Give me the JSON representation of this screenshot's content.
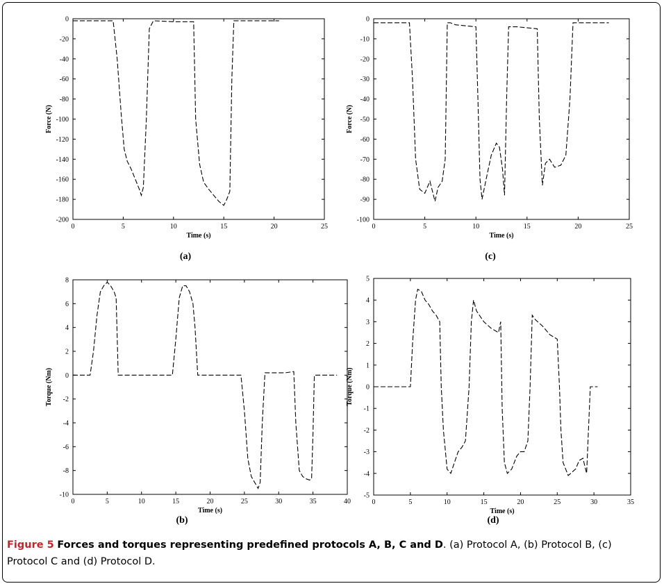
{
  "caption": {
    "figure_label": "Figure 5",
    "title": "Forces and torques representing predefined protocols A, B, C and D",
    "text": ". (a) Protocol A, (b) Protocol B, (c) Protocol C and (d) Protocol D."
  },
  "chart_data": [
    {
      "id": "a",
      "type": "line",
      "panel_label": "(a)",
      "xlabel": "Time (s)",
      "ylabel": "Force (N)",
      "xlim": [
        0,
        25
      ],
      "ylim": [
        -200,
        0
      ],
      "xticks": [
        0,
        5,
        10,
        15,
        20,
        25
      ],
      "yticks": [
        0,
        -20,
        -40,
        -60,
        -80,
        -100,
        -120,
        -140,
        -160,
        -180,
        -200
      ],
      "line_style": "dashed",
      "line_color": "#000000",
      "series": [
        {
          "x": [
            0,
            4,
            4.4,
            4.8,
            5.1,
            5.4,
            5.8,
            6.2,
            6.6,
            6.8,
            7.0,
            7.3,
            7.6,
            8.0,
            10,
            12.0,
            12.2,
            12.6,
            13.0,
            13.5,
            14.0,
            14.5,
            15.0,
            15.3,
            15.6,
            15.8,
            16.0,
            17,
            20.5
          ],
          "y": [
            -2,
            -2,
            -40,
            -95,
            -130,
            -142,
            -150,
            -160,
            -170,
            -176,
            -168,
            -100,
            -10,
            -2,
            -3,
            -3,
            -100,
            -145,
            -163,
            -170,
            -176,
            -182,
            -186,
            -180,
            -172,
            -60,
            -2,
            -2,
            -2
          ]
        }
      ]
    },
    {
      "id": "c",
      "type": "line",
      "panel_label": "(c)",
      "xlabel": "Time (s)",
      "ylabel": "Force (N)",
      "xlim": [
        0,
        25
      ],
      "ylim": [
        -100,
        0
      ],
      "xticks": [
        0,
        5,
        10,
        15,
        20,
        25
      ],
      "yticks": [
        0,
        -10,
        -20,
        -30,
        -40,
        -50,
        -60,
        -70,
        -80,
        -90,
        -100
      ],
      "line_style": "dashed",
      "line_color": "#000000",
      "series": [
        {
          "x": [
            0,
            3.5,
            3.8,
            4.1,
            4.5,
            5.0,
            5.5,
            6.0,
            6.3,
            6.7,
            7.0,
            7.2,
            7.5,
            8.0,
            10.0,
            10.2,
            10.4,
            10.6,
            11.0,
            11.5,
            12.0,
            12.3,
            12.6,
            12.8,
            13.0,
            13.2,
            14.0,
            16.0,
            16.2,
            16.5,
            16.8,
            17.2,
            17.7,
            18.3,
            18.8,
            19.2,
            19.5,
            20,
            23
          ],
          "y": [
            -2,
            -2,
            -30,
            -70,
            -85,
            -87,
            -81,
            -91,
            -84,
            -81,
            -70,
            -2,
            -2,
            -3,
            -4,
            -40,
            -80,
            -90,
            -80,
            -68,
            -62,
            -64,
            -75,
            -88,
            -40,
            -4,
            -4,
            -5,
            -50,
            -83,
            -72,
            -70,
            -74,
            -73,
            -68,
            -40,
            -2,
            -2,
            -2
          ]
        }
      ]
    },
    {
      "id": "b",
      "type": "line",
      "panel_label": "(b)",
      "xlabel": "Time (s)",
      "ylabel": "Torque (Nm)",
      "xlim": [
        0,
        40
      ],
      "ylim": [
        -10,
        8
      ],
      "xticks": [
        0,
        5,
        10,
        15,
        20,
        25,
        30,
        35,
        40
      ],
      "yticks": [
        8,
        6,
        4,
        2,
        0,
        -2,
        -4,
        -6,
        -8,
        -10
      ],
      "line_style": "dashed",
      "line_color": "#000000",
      "series": [
        {
          "x": [
            0,
            2.5,
            3.0,
            3.5,
            4.0,
            4.5,
            5.0,
            5.5,
            6.0,
            6.3,
            6.6,
            10,
            14.5,
            15.0,
            15.5,
            16.0,
            16.5,
            17.0,
            17.5,
            17.8,
            18.2,
            20,
            24.5,
            25.0,
            25.5,
            26.0,
            26.5,
            27.0,
            27.3,
            27.6,
            28,
            31,
            32.2,
            32.5,
            33.0,
            33.5,
            34.0,
            34.5,
            34.8,
            35.0,
            35.2,
            38.5
          ],
          "y": [
            0,
            0,
            2,
            5,
            7,
            7.5,
            7.8,
            7.5,
            7,
            6.5,
            0,
            0,
            0,
            3,
            6.5,
            7.5,
            7.5,
            7,
            6,
            4,
            0,
            0,
            0,
            -3,
            -7,
            -8.5,
            -9,
            -9.5,
            -9,
            -4,
            0.2,
            0.2,
            0.3,
            -4,
            -8,
            -8.5,
            -8.7,
            -8.8,
            -8.7,
            -5,
            0,
            0
          ]
        }
      ]
    },
    {
      "id": "d",
      "type": "line",
      "panel_label": "(d)",
      "xlabel": "Time (s)",
      "ylabel": "Torque (Nm)",
      "xlim": [
        0,
        35
      ],
      "ylim": [
        -5,
        5
      ],
      "xticks": [
        0,
        5,
        10,
        15,
        20,
        25,
        30,
        35
      ],
      "yticks": [
        5,
        4,
        3,
        2,
        1,
        0,
        -1,
        -2,
        -3,
        -4,
        -5
      ],
      "line_style": "dashed",
      "line_color": "#000000",
      "series": [
        {
          "x": [
            0,
            5.0,
            5.3,
            5.7,
            6.0,
            6.5,
            7.0,
            7.5,
            8.0,
            8.5,
            9.0,
            9.2,
            9.5,
            10.0,
            10.5,
            11.0,
            11.5,
            12.0,
            12.5,
            13.0,
            13.3,
            13.6,
            14.0,
            15.0,
            16.0,
            17.0,
            17.3,
            17.5,
            17.8,
            18.2,
            18.8,
            19.5,
            20.0,
            20.5,
            21.0,
            21.3,
            21.6,
            22.0,
            23.0,
            24.0,
            25.0,
            25.3,
            25.5,
            25.8,
            26.5,
            27.5,
            28.0,
            28.5,
            29.0,
            29.5,
            30.5
          ],
          "y": [
            0,
            0,
            2,
            4,
            4.5,
            4.4,
            4,
            3.8,
            3.5,
            3.3,
            3,
            0,
            -2,
            -3.8,
            -4,
            -3.5,
            -3,
            -2.8,
            -2.5,
            0,
            3,
            4,
            3.5,
            3,
            2.7,
            2.5,
            3,
            -1,
            -3.5,
            -4,
            -3.8,
            -3.2,
            -3,
            -3,
            -2.5,
            0,
            3.3,
            3.1,
            2.8,
            2.4,
            2.2,
            0,
            -2,
            -3.5,
            -4.1,
            -3.8,
            -3.4,
            -3.3,
            -4,
            0,
            0
          ]
        }
      ]
    }
  ]
}
